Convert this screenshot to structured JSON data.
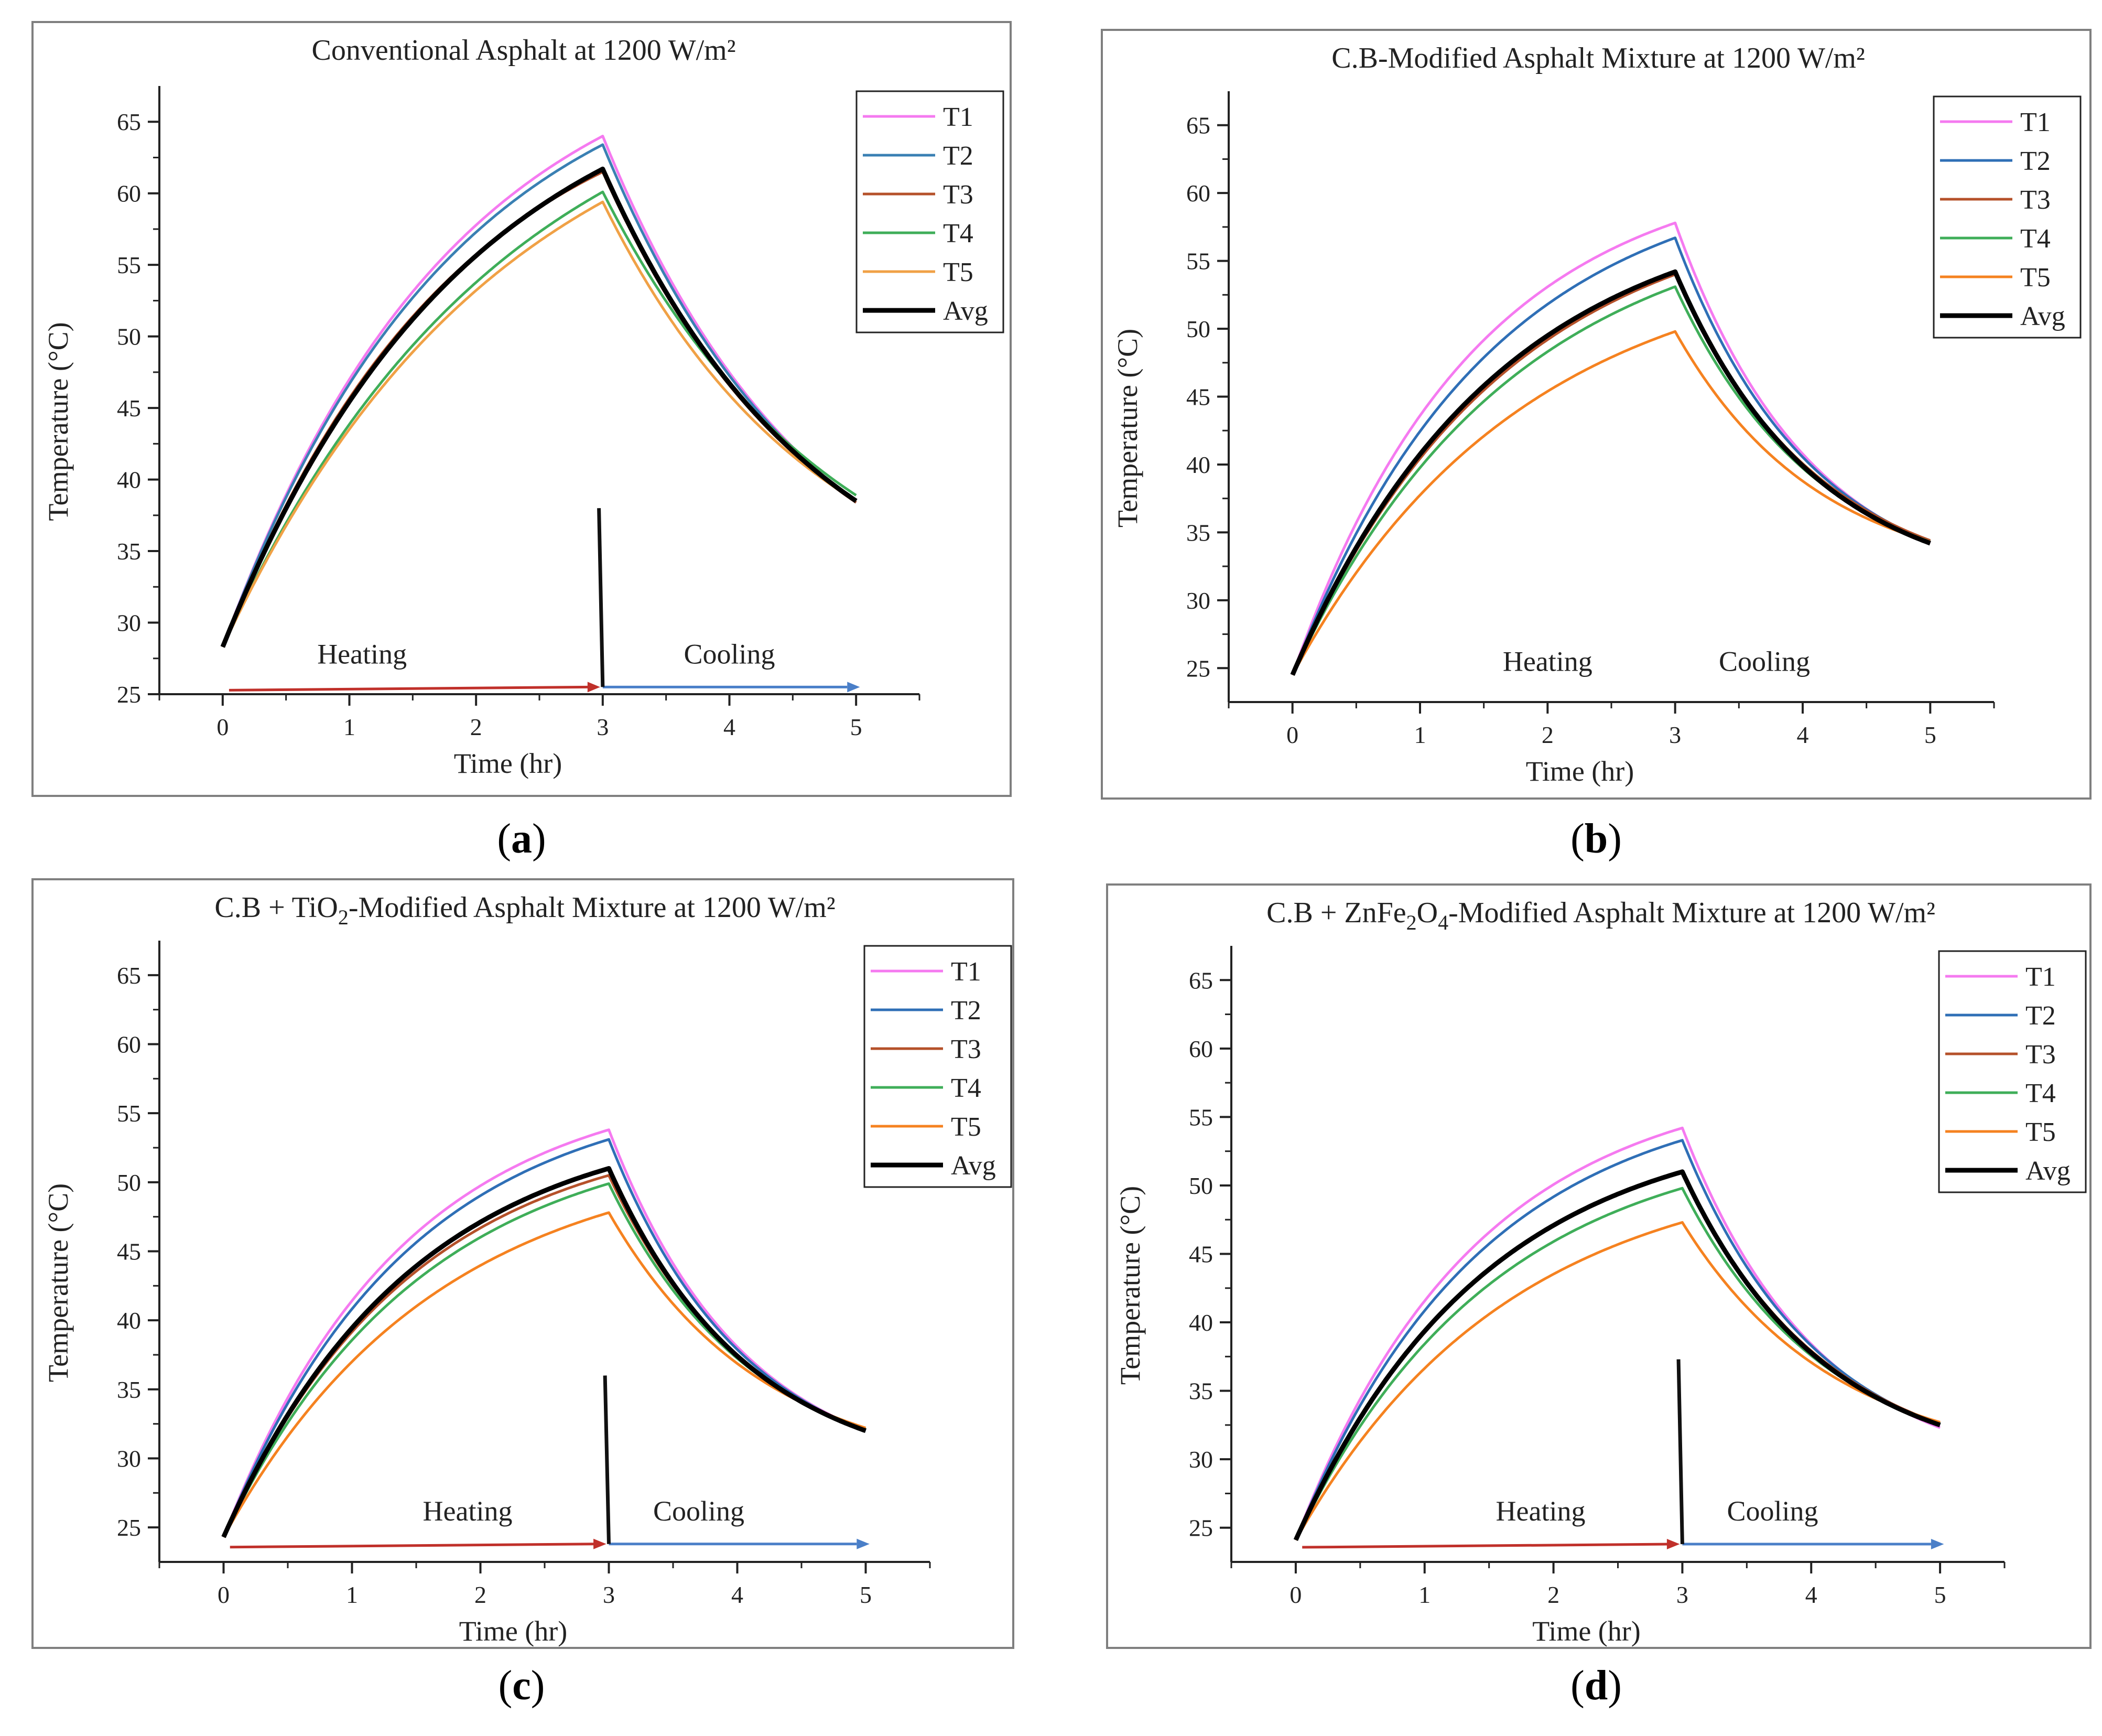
{
  "figure": {
    "captions": [
      "a",
      "b",
      "c",
      "d"
    ]
  },
  "chart_data": [
    {
      "type": "line",
      "title": "Conventional Asphalt at 1200 W/m²",
      "title_sub": "",
      "xlabel": "Time (hr)",
      "ylabel": "Temperature (°C)",
      "xlim": [
        -0.5,
        5.5
      ],
      "ylim": [
        25,
        67.5
      ],
      "xticks": [
        0,
        1,
        2,
        3,
        4,
        5
      ],
      "yticks": [
        25,
        30,
        35,
        40,
        45,
        50,
        55,
        60,
        65
      ],
      "legend_position": "top-right",
      "annotations": {
        "heating": "Heating",
        "cooling": "Cooling",
        "divider_top": 38
      },
      "series": [
        {
          "name": "T1",
          "color": "#f57af0",
          "start": 28.3,
          "peak": 64.0,
          "end": 38.4,
          "k_heat": 0.55,
          "k_cool": 0.6
        },
        {
          "name": "T2",
          "color": "#3a80b3",
          "start": 28.3,
          "peak": 63.4,
          "end": 38.4,
          "k_heat": 0.55,
          "k_cool": 0.6
        },
        {
          "name": "T3",
          "color": "#b5512a",
          "start": 28.3,
          "peak": 61.5,
          "end": 38.4,
          "k_heat": 0.55,
          "k_cool": 0.6
        },
        {
          "name": "T4",
          "color": "#3fae59",
          "start": 28.3,
          "peak": 60.1,
          "end": 38.9,
          "k_heat": 0.45,
          "k_cool": 0.55
        },
        {
          "name": "T5",
          "color": "#f0a146",
          "start": 28.3,
          "peak": 59.4,
          "end": 38.5,
          "k_heat": 0.45,
          "k_cool": 0.6
        },
        {
          "name": "Avg",
          "color": "#000000",
          "start": 28.3,
          "peak": 61.7,
          "end": 38.5,
          "k_heat": 0.52,
          "k_cool": 0.6,
          "bold": true
        }
      ]
    },
    {
      "type": "line",
      "title": "C.B-Modified Asphalt Mixture at 1200 W/m²",
      "title_sub": "",
      "xlabel": "Time (hr)",
      "ylabel": "Temperature (°C)",
      "xlim": [
        -0.5,
        5.5
      ],
      "ylim": [
        22.5,
        67.5
      ],
      "xticks": [
        0,
        1,
        2,
        3,
        4,
        5
      ],
      "yticks": [
        25,
        30,
        35,
        40,
        45,
        50,
        55,
        60,
        65
      ],
      "legend_position": "top-right",
      "annotations": {
        "heating": "Heating",
        "cooling": "Cooling"
      },
      "series": [
        {
          "name": "T1",
          "color": "#f57af0",
          "start": 24.5,
          "peak": 57.8,
          "end": 34.2,
          "k_heat": 0.7,
          "k_cool": 0.95
        },
        {
          "name": "T2",
          "color": "#2f6fb6",
          "start": 24.5,
          "peak": 56.7,
          "end": 34.3,
          "k_heat": 0.65,
          "k_cool": 0.95
        },
        {
          "name": "T3",
          "color": "#b5512a",
          "start": 24.5,
          "peak": 54.0,
          "end": 34.4,
          "k_heat": 0.6,
          "k_cool": 0.9
        },
        {
          "name": "T4",
          "color": "#3fae59",
          "start": 24.5,
          "peak": 53.1,
          "end": 34.3,
          "k_heat": 0.58,
          "k_cool": 0.9
        },
        {
          "name": "T5",
          "color": "#f58220",
          "start": 24.5,
          "peak": 49.8,
          "end": 34.3,
          "k_heat": 0.55,
          "k_cool": 0.9
        },
        {
          "name": "Avg",
          "color": "#000000",
          "start": 24.5,
          "peak": 54.2,
          "end": 34.2,
          "k_heat": 0.62,
          "k_cool": 0.92,
          "bold": true
        }
      ]
    },
    {
      "type": "line",
      "title": "C.B + TiO",
      "title_sub": "2",
      "title_rest": "-Modified Asphalt Mixture at 1200 W/m²",
      "xlabel": "Time (hr)",
      "ylabel": "Temperature (°C)",
      "xlim": [
        -0.5,
        5.5
      ],
      "ylim": [
        22.5,
        67.5
      ],
      "xticks": [
        0,
        1,
        2,
        3,
        4,
        5
      ],
      "yticks": [
        25,
        30,
        35,
        40,
        45,
        50,
        55,
        60,
        65
      ],
      "legend_position": "top-right",
      "annotations": {
        "heating": "Heating",
        "cooling": "Cooling",
        "divider_top": 36
      },
      "series": [
        {
          "name": "T1",
          "color": "#f57af0",
          "start": 24.3,
          "peak": 53.8,
          "end": 32.0,
          "k_heat": 0.72,
          "k_cool": 0.95
        },
        {
          "name": "T2",
          "color": "#2f6fb6",
          "start": 24.3,
          "peak": 53.1,
          "end": 32.0,
          "k_heat": 0.7,
          "k_cool": 0.95
        },
        {
          "name": "T3",
          "color": "#b5512a",
          "start": 24.3,
          "peak": 50.5,
          "end": 32.1,
          "k_heat": 0.68,
          "k_cool": 0.9
        },
        {
          "name": "T4",
          "color": "#3fae59",
          "start": 24.3,
          "peak": 49.9,
          "end": 32.1,
          "k_heat": 0.65,
          "k_cool": 0.9
        },
        {
          "name": "T5",
          "color": "#f58220",
          "start": 24.3,
          "peak": 47.8,
          "end": 32.2,
          "k_heat": 0.6,
          "k_cool": 0.85
        },
        {
          "name": "Avg",
          "color": "#000000",
          "start": 24.3,
          "peak": 51.0,
          "end": 32.0,
          "k_heat": 0.68,
          "k_cool": 0.92,
          "bold": true
        }
      ]
    },
    {
      "type": "line",
      "title": "C.B + ZnFe",
      "title_sub": "2",
      "title_mid": "O",
      "title_sub2": "4",
      "title_rest": "-Modified Asphalt Mixture at 1200 W/m²",
      "xlabel": "Time (hr)",
      "ylabel": "Temperature (°C)",
      "xlim": [
        -0.5,
        5.5
      ],
      "ylim": [
        22.5,
        67.5
      ],
      "xticks": [
        0,
        1,
        2,
        3,
        4,
        5
      ],
      "yticks": [
        25,
        30,
        35,
        40,
        45,
        50,
        55,
        60,
        65
      ],
      "legend_position": "top-right",
      "annotations": {
        "heating": "Heating",
        "cooling": "Cooling",
        "divider_top": 37.3
      },
      "series": [
        {
          "name": "T1",
          "color": "#f57af0",
          "start": 24.1,
          "peak": 54.2,
          "end": 32.3,
          "k_heat": 0.72,
          "k_cool": 0.95
        },
        {
          "name": "T2",
          "color": "#2f6fb6",
          "start": 24.1,
          "peak": 53.3,
          "end": 32.5,
          "k_heat": 0.7,
          "k_cool": 0.95
        },
        {
          "name": "T3",
          "color": "#b5512a",
          "start": 24.1,
          "peak": 51.0,
          "end": 32.6,
          "k_heat": 0.68,
          "k_cool": 0.9
        },
        {
          "name": "T4",
          "color": "#3fae59",
          "start": 24.1,
          "peak": 49.8,
          "end": 32.6,
          "k_heat": 0.65,
          "k_cool": 0.9
        },
        {
          "name": "T5",
          "color": "#f58220",
          "start": 24.1,
          "peak": 47.3,
          "end": 32.7,
          "k_heat": 0.6,
          "k_cool": 0.85
        },
        {
          "name": "Avg",
          "color": "#000000",
          "start": 24.1,
          "peak": 51.0,
          "end": 32.5,
          "k_heat": 0.68,
          "k_cool": 0.92,
          "bold": true
        }
      ]
    }
  ]
}
